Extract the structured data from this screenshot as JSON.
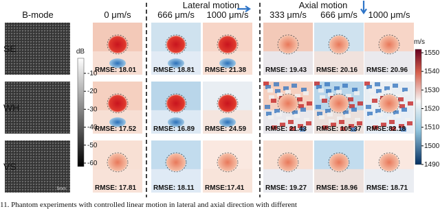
{
  "header": {
    "bmode": "B-mode",
    "lateral": "Lateral motion",
    "axial": "Axial motion",
    "columns": [
      "0 μm/s",
      "666 μm/s",
      "1000 μm/s",
      "333 μm/s",
      "666 μm/s",
      "1000 μm/s"
    ]
  },
  "rows": [
    {
      "label": "SE",
      "rmse": [
        "RMSE: 18.01",
        "RMSE: 18.81",
        "RMSE: 21.38",
        "RMSE: 19.43",
        "RMSE: 20.16",
        "RMSE: 20.96"
      ]
    },
    {
      "label": "WH",
      "rmse": [
        "RMSE: 17.52",
        "RMSE: 16.89",
        "RMSE: 24.59",
        "RMSE: 21.43",
        "RMSE: 105.37",
        "RMSE:82.18"
      ]
    },
    {
      "label": "VS",
      "rmse": [
        "RMSE: 17.81",
        "RMSE: 18.11",
        "RMSE:17.41",
        "RMSE: 19.27",
        "RMSE: 18.96",
        "RMSE: 18.71"
      ]
    }
  ],
  "bmode_scale": "5mm",
  "db_colorbar": {
    "unit": "dB",
    "ticks": [
      -10,
      -20,
      -30,
      -40,
      -50,
      -60
    ]
  },
  "speed_colorbar": {
    "unit": "m/s",
    "ticks": [
      1550,
      1540,
      1530,
      1520,
      1510,
      1500,
      1490
    ]
  },
  "caption": "11. Phantom experiments with controlled linear motion in lateral and axial direction with different"
}
